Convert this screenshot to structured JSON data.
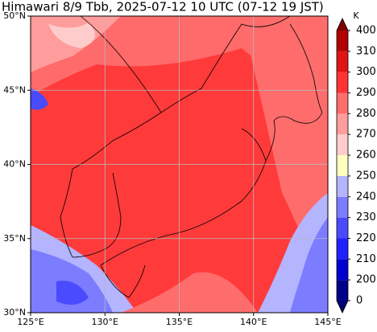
{
  "title": "Himawari 8/9 Tbb, 2025-07-12 10 UTC (07-12 19 JST)",
  "map": {
    "lon_range": [
      125,
      145
    ],
    "lat_range": [
      30,
      50
    ],
    "lon_ticks": [
      {
        "value": 125,
        "label": "125°E"
      },
      {
        "value": 130,
        "label": "130°E"
      },
      {
        "value": 135,
        "label": "135°E"
      },
      {
        "value": 140,
        "label": "140°E"
      },
      {
        "value": 145,
        "label": "145°E"
      }
    ],
    "lat_ticks": [
      {
        "value": 30,
        "label": "30°N"
      },
      {
        "value": 35,
        "label": "35°N"
      },
      {
        "value": 40,
        "label": "40°N"
      },
      {
        "value": 45,
        "label": "45°N"
      },
      {
        "value": 50,
        "label": "50°N"
      }
    ]
  },
  "colorbar": {
    "unit": "K",
    "ticks": [
      0,
      200,
      210,
      220,
      230,
      240,
      250,
      260,
      270,
      280,
      290,
      300,
      310,
      400
    ],
    "colors": [
      "#00008b",
      "#0000d0",
      "#2020ff",
      "#4a4aff",
      "#7c7cff",
      "#b4b4ff",
      "#ffffc0",
      "#ffcccc",
      "#ff9c9c",
      "#ff6c6c",
      "#ff3333",
      "#e01414",
      "#b00000"
    ],
    "extend_colors": [
      "#000070",
      "#800000"
    ]
  }
}
